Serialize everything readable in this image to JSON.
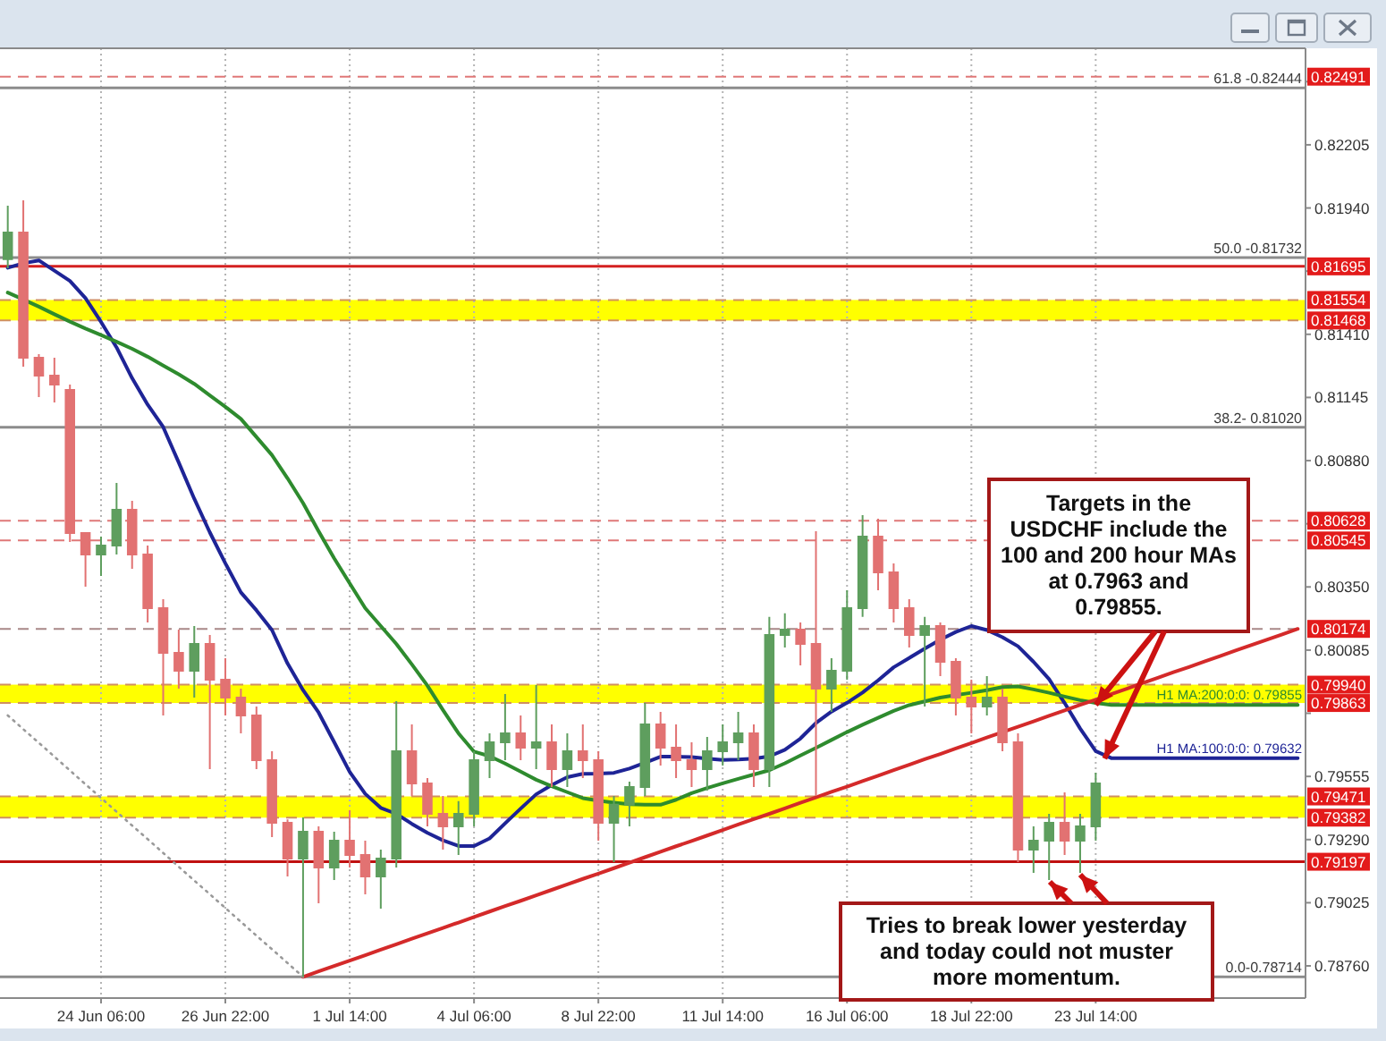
{
  "chart_data": {
    "type": "candlestick",
    "categories": [
      null,
      null,
      null,
      null,
      null,
      null,
      "24 Jun 06:00",
      null,
      null,
      null,
      null,
      null,
      null,
      null,
      "26 Jun 22:00",
      null,
      null,
      null,
      null,
      null,
      null,
      null,
      "1 Jul 14:00",
      null,
      null,
      null,
      null,
      null,
      null,
      null,
      "4 Jul 06:00",
      null,
      null,
      null,
      null,
      null,
      null,
      null,
      "8 Jul 22:00",
      null,
      null,
      null,
      null,
      null,
      null,
      null,
      "11 Jul 14:00",
      null,
      null,
      null,
      null,
      null,
      null,
      null,
      "16 Jul 06:00",
      null,
      null,
      null,
      null,
      null,
      null,
      null,
      "18 Jul 22:00",
      null,
      null,
      null,
      null,
      null,
      null,
      null,
      "23 Jul 14:00",
      null,
      null,
      null,
      null,
      null,
      null,
      null,
      null,
      null,
      null,
      null,
      null,
      null
    ],
    "ohlc": [
      [
        0.81725,
        0.8195,
        0.81687,
        0.81837
      ],
      [
        0.81837,
        0.81972,
        0.81274,
        0.81312
      ],
      [
        0.81312,
        0.81327,
        0.81147,
        0.81237
      ],
      [
        0.81237,
        0.81312,
        0.81124,
        0.81199
      ],
      [
        0.81177,
        0.81199,
        0.80539,
        0.80576
      ],
      [
        0.80576,
        0.80576,
        0.80351,
        0.80486
      ],
      [
        0.80486,
        0.80561,
        0.80396,
        0.80524
      ],
      [
        0.80524,
        0.80786,
        0.80486,
        0.80674
      ],
      [
        0.80674,
        0.80711,
        0.80426,
        0.80486
      ],
      [
        0.80486,
        0.80524,
        0.80201,
        0.80261
      ],
      [
        0.80261,
        0.80299,
        0.79811,
        0.80073
      ],
      [
        0.80073,
        0.80171,
        0.79923,
        0.79998
      ],
      [
        0.79998,
        0.80186,
        0.79886,
        0.80111
      ],
      [
        0.80111,
        0.80148,
        0.79586,
        0.79961
      ],
      [
        0.79961,
        0.80051,
        0.79811,
        0.79886
      ],
      [
        0.79886,
        0.79923,
        0.79736,
        0.79811
      ],
      [
        0.79811,
        0.79848,
        0.79586,
        0.79623
      ],
      [
        0.79623,
        0.79661,
        0.793,
        0.7936
      ],
      [
        0.7936,
        0.79375,
        0.79135,
        0.7921
      ],
      [
        0.7921,
        0.79383,
        0.78714,
        0.79323
      ],
      [
        0.79323,
        0.79345,
        0.79023,
        0.79173
      ],
      [
        0.79173,
        0.79323,
        0.7912,
        0.79285
      ],
      [
        0.79285,
        0.79413,
        0.79173,
        0.79225
      ],
      [
        0.79225,
        0.79285,
        0.7906,
        0.79135
      ],
      [
        0.79135,
        0.79248,
        0.79,
        0.7921
      ],
      [
        0.7921,
        0.79871,
        0.79173,
        0.79661
      ],
      [
        0.79661,
        0.79773,
        0.79473,
        0.79526
      ],
      [
        0.79526,
        0.79548,
        0.79345,
        0.79398
      ],
      [
        0.79398,
        0.79473,
        0.79248,
        0.79345
      ],
      [
        0.79345,
        0.79451,
        0.79225,
        0.79398
      ],
      [
        0.79398,
        0.79661,
        0.79345,
        0.79623
      ],
      [
        0.79623,
        0.79736,
        0.79548,
        0.79698
      ],
      [
        0.79698,
        0.79901,
        0.79623,
        0.79736
      ],
      [
        0.79736,
        0.79811,
        0.79623,
        0.79676
      ],
      [
        0.79676,
        0.79938,
        0.79586,
        0.79698
      ],
      [
        0.79698,
        0.79773,
        0.79511,
        0.79586
      ],
      [
        0.79586,
        0.79736,
        0.79511,
        0.79661
      ],
      [
        0.79661,
        0.79773,
        0.79548,
        0.79623
      ],
      [
        0.79623,
        0.79661,
        0.79285,
        0.7936
      ],
      [
        0.7936,
        0.79473,
        0.79195,
        0.79436
      ],
      [
        0.79436,
        0.79533,
        0.79345,
        0.79511
      ],
      [
        0.79511,
        0.79863,
        0.79473,
        0.79773
      ],
      [
        0.79773,
        0.79826,
        0.79601,
        0.79676
      ],
      [
        0.79676,
        0.79773,
        0.79548,
        0.79623
      ],
      [
        0.79623,
        0.79698,
        0.79511,
        0.79586
      ],
      [
        0.79586,
        0.79721,
        0.79496,
        0.79661
      ],
      [
        0.79661,
        0.79773,
        0.79601,
        0.79698
      ],
      [
        0.79698,
        0.79826,
        0.79623,
        0.79736
      ],
      [
        0.79736,
        0.79773,
        0.79511,
        0.79586
      ],
      [
        0.79586,
        0.80224,
        0.79511,
        0.80148
      ],
      [
        0.80148,
        0.80239,
        0.80096,
        0.80171
      ],
      [
        0.80171,
        0.80201,
        0.80021,
        0.80111
      ],
      [
        0.80111,
        0.80584,
        0.79473,
        0.79923
      ],
      [
        0.79923,
        0.80051,
        0.79826,
        0.79998
      ],
      [
        0.79998,
        0.80336,
        0.79961,
        0.80261
      ],
      [
        0.80261,
        0.80651,
        0.80224,
        0.80561
      ],
      [
        0.80561,
        0.80636,
        0.80336,
        0.80411
      ],
      [
        0.80411,
        0.80449,
        0.80201,
        0.80261
      ],
      [
        0.80261,
        0.80299,
        0.80096,
        0.80148
      ],
      [
        0.80148,
        0.80224,
        0.79848,
        0.80186
      ],
      [
        0.80186,
        0.80201,
        0.79976,
        0.80036
      ],
      [
        0.80036,
        0.80051,
        0.79811,
        0.79886
      ],
      [
        0.79886,
        0.79961,
        0.79736,
        0.79848
      ],
      [
        0.79848,
        0.79976,
        0.79811,
        0.79886
      ],
      [
        0.79886,
        0.79923,
        0.79661,
        0.79698
      ],
      [
        0.79698,
        0.79736,
        0.79195,
        0.79248
      ],
      [
        0.79248,
        0.79345,
        0.7915,
        0.79285
      ],
      [
        0.79285,
        0.79398,
        0.7912,
        0.7936
      ],
      [
        0.7936,
        0.79488,
        0.79225,
        0.79285
      ],
      [
        0.79285,
        0.79398,
        0.7915,
        0.79345
      ],
      [
        0.79345,
        0.79571,
        0.79285,
        0.79526
      ],
      null,
      null,
      null,
      null,
      null,
      null,
      null,
      null,
      null,
      null,
      null,
      null,
      null
    ],
    "colors": [
      "#5e9e5e",
      "#e27272",
      "#e27272",
      "#e27272",
      "#e27272",
      "#e27272",
      "#5e9e5e",
      "#5e9e5e",
      "#e27272",
      "#e27272",
      "#e27272",
      "#e27272",
      "#5e9e5e",
      "#e27272",
      "#e27272",
      "#e27272",
      "#e27272",
      "#e27272",
      "#e27272",
      "#5e9e5e",
      "#e27272",
      "#5e9e5e",
      "#e27272",
      "#e27272",
      "#5e9e5e",
      "#5e9e5e",
      "#e27272",
      "#e27272",
      "#e27272",
      "#5e9e5e",
      "#5e9e5e",
      "#5e9e5e",
      "#5e9e5e",
      "#e27272",
      "#5e9e5e",
      "#e27272",
      "#5e9e5e",
      "#e27272",
      "#e27272",
      "#5e9e5e",
      "#5e9e5e",
      "#5e9e5e",
      "#e27272",
      "#e27272",
      "#e27272",
      "#5e9e5e",
      "#5e9e5e",
      "#5e9e5e",
      "#e27272",
      "#5e9e5e",
      "#5e9e5e",
      "#e27272",
      "#e27272",
      "#5e9e5e",
      "#5e9e5e",
      "#5e9e5e",
      "#e27272",
      "#e27272",
      "#e27272",
      "#5e9e5e",
      "#e27272",
      "#e27272",
      "#e27272",
      "#5e9e5e",
      "#e27272",
      "#e27272",
      "#5e9e5e",
      "#5e9e5e",
      "#e27272",
      "#5e9e5e",
      "#5e9e5e",
      null,
      null,
      null,
      null,
      null,
      null,
      null,
      null,
      null,
      null,
      null,
      null,
      null
    ],
    "series": [
      {
        "type": "line",
        "name": "H1 MA:100:0:0: 0.79632",
        "color": "#1e2496",
        "values": [
          0.81689,
          0.81708,
          0.8172,
          0.81677,
          0.81634,
          0.81562,
          0.81462,
          0.81355,
          0.81226,
          0.81115,
          0.81021,
          0.80872,
          0.8072,
          0.80579,
          0.80449,
          0.80327,
          0.80252,
          0.80169,
          0.80029,
          0.79917,
          0.79823,
          0.79699,
          0.79574,
          0.79482,
          0.79423,
          0.79398,
          0.79356,
          0.79318,
          0.79287,
          0.79263,
          0.79263,
          0.79295,
          0.79358,
          0.7942,
          0.7948,
          0.79519,
          0.79552,
          0.79566,
          0.79567,
          0.7957,
          0.79588,
          0.79612,
          0.79638,
          0.79638,
          0.79636,
          0.7963,
          0.79624,
          0.79626,
          0.7963,
          0.79639,
          0.79667,
          0.79714,
          0.79779,
          0.79827,
          0.79864,
          0.79907,
          0.79958,
          0.80013,
          0.80052,
          0.80091,
          0.80129,
          0.80161,
          0.80186,
          0.80169,
          0.80139,
          0.80101,
          0.80036,
          0.79963,
          0.79863,
          0.79756,
          0.79661,
          0.79632,
          0.79632,
          0.79632,
          0.79632,
          0.79632,
          0.79632,
          0.79632,
          0.79632,
          0.79632,
          0.79632,
          0.79632,
          0.79632,
          0.79632
        ]
      },
      {
        "type": "line",
        "name": "H1 MA:200:0:0: 0.79855",
        "color": "#2e8b2e",
        "values": [
          0.81585,
          0.81556,
          0.81526,
          0.81494,
          0.81463,
          0.81434,
          0.81407,
          0.81379,
          0.81349,
          0.81316,
          0.81279,
          0.81242,
          0.81202,
          0.81154,
          0.81106,
          0.81055,
          0.80979,
          0.80903,
          0.80806,
          0.80702,
          0.80584,
          0.8047,
          0.80365,
          0.80261,
          0.80186,
          0.80111,
          0.80025,
          0.79936,
          0.79834,
          0.79736,
          0.79659,
          0.7964,
          0.79609,
          0.79575,
          0.79541,
          0.79514,
          0.79489,
          0.79464,
          0.79453,
          0.79445,
          0.79438,
          0.79436,
          0.79436,
          0.79457,
          0.79485,
          0.79506,
          0.79526,
          0.79545,
          0.79563,
          0.79581,
          0.7961,
          0.79643,
          0.79675,
          0.79708,
          0.79741,
          0.79772,
          0.79801,
          0.7983,
          0.79854,
          0.7987,
          0.79886,
          0.79896,
          0.79906,
          0.79917,
          0.7993,
          0.79933,
          0.7992,
          0.79906,
          0.7989,
          0.79875,
          0.79863,
          0.79855,
          0.79855,
          0.79855,
          0.79855,
          0.79855,
          0.79855,
          0.79855,
          0.79855,
          0.79855,
          0.79855,
          0.79855,
          0.79855,
          0.79855
        ]
      },
      {
        "type": "line",
        "color": "#d42a2a",
        "values": [
          null,
          null,
          null,
          null,
          null,
          null,
          null,
          null,
          null,
          null,
          null,
          null,
          null,
          null,
          null,
          null,
          null,
          null,
          null,
          0.78714,
          0.78737,
          0.7876,
          0.78782,
          0.78805,
          0.78828,
          0.78851,
          0.78874,
          0.78897,
          0.78919,
          0.78942,
          0.78965,
          0.78988,
          0.79011,
          0.79033,
          0.79056,
          0.79079,
          0.79102,
          0.79125,
          0.79147,
          0.7917,
          0.79193,
          0.79216,
          0.79239,
          0.79262,
          0.79284,
          0.79307,
          0.7933,
          0.79353,
          0.79376,
          0.79398,
          0.79421,
          0.79444,
          0.79467,
          0.7949,
          0.79512,
          0.79535,
          0.79558,
          0.79581,
          0.79604,
          0.79627,
          0.79649,
          0.79672,
          0.79695,
          0.79718,
          0.79741,
          0.79763,
          0.79786,
          0.79809,
          0.79832,
          0.79855,
          0.79877,
          0.799,
          0.79923,
          0.79946,
          0.79969,
          0.79992,
          0.80014,
          0.80037,
          0.8006,
          0.80083,
          0.80106,
          0.80128,
          0.80151,
          0.80174
        ]
      },
      {
        "type": "line",
        "color": "#9a9a9a",
        "line_style": "dotted",
        "values": [
          0.79811,
          0.79753,
          0.79696,
          0.79638,
          0.7958,
          0.79522,
          0.79465,
          0.79407,
          0.79349,
          0.79292,
          0.79234,
          0.79176,
          0.79118,
          0.79061,
          0.79003,
          0.78945,
          0.78887,
          0.7883,
          0.78772,
          0.78714,
          null,
          null,
          null,
          null,
          null,
          null,
          null,
          null,
          null,
          null,
          null,
          null,
          null,
          null,
          null,
          null,
          null,
          null,
          null,
          null,
          null,
          null,
          null,
          null,
          null,
          null,
          null,
          null,
          null,
          null,
          null,
          null,
          null,
          null,
          null,
          null,
          null,
          null,
          null,
          null,
          null,
          null,
          null,
          null,
          null,
          null,
          null,
          null,
          null,
          null,
          null,
          null,
          null,
          null,
          null,
          null,
          null,
          null,
          null,
          null,
          null,
          null,
          null,
          null
        ]
      }
    ],
    "ylim": [
      0.78625,
      0.8261
    ],
    "yticks": [
      {
        "value": 0.7876,
        "label": "0.78760"
      },
      0.79025,
      {
        "value": 0.7929,
        "label": "0.79290"
      },
      0.79555,
      {
        "value": 0.7982,
        "label": null
      },
      0.80085,
      {
        "value": 0.8035,
        "label": "0.80350"
      },
      {
        "value": 0.80615,
        "label": null
      },
      {
        "value": 0.8088,
        "label": "0.80880"
      },
      0.81145,
      {
        "value": 0.8141,
        "label": "0.81410"
      },
      {
        "value": 0.81675,
        "label": null
      },
      {
        "value": 0.8194,
        "label": "0.81940"
      },
      0.82205,
      {
        "value": 0.8247,
        "label": null
      }
    ],
    "grid": "x",
    "bands": [
      {
        "axis": "y",
        "from": 0.81468,
        "to": 0.81554,
        "color": "#ffff00"
      },
      {
        "axis": "y",
        "from": 0.79863,
        "to": 0.7994,
        "color": "#ffff00"
      },
      {
        "axis": "y",
        "from": 0.79382,
        "to": 0.79471,
        "color": "#ffff00"
      }
    ],
    "ref_lines": [
      {
        "axis": "y",
        "value": 0.82491,
        "label": "0.82491",
        "color": "#e07878",
        "line_style": "dashed"
      },
      {
        "axis": "y",
        "value": 0.82444,
        "color": "#8c8c8c"
      },
      {
        "axis": "y",
        "value": 0.81732,
        "color": "#8c8c8c"
      },
      {
        "axis": "y",
        "value": 0.81695,
        "label": "0.81695",
        "color": "#d42020"
      },
      {
        "axis": "y",
        "value": 0.81554,
        "label": "0.81554",
        "color": "#d09060",
        "line_style": "dashed"
      },
      {
        "axis": "y",
        "value": 0.81468,
        "label": "0.81468",
        "color": "#d09060",
        "line_style": "dashed"
      },
      {
        "axis": "y",
        "value": 0.8102,
        "color": "#8c8c8c"
      },
      {
        "axis": "y",
        "value": 0.80628,
        "label": "0.80628",
        "color": "#e07878",
        "line_style": "dashed"
      },
      {
        "axis": "y",
        "value": 0.80545,
        "label": "0.80545",
        "color": "#e07878",
        "line_style": "dashed"
      },
      {
        "axis": "y",
        "value": 0.80174,
        "label": "0.80174",
        "color": "#a88888",
        "line_style": "dashed"
      },
      {
        "axis": "y",
        "value": 0.7994,
        "label": "0.79940",
        "color": "#d09060",
        "line_style": "dashed"
      },
      {
        "axis": "y",
        "value": 0.79863,
        "label": "0.79863",
        "color": "#d09060",
        "line_style": "dashed"
      },
      {
        "axis": "y",
        "value": 0.79471,
        "label": "0.79471",
        "color": "#d09060",
        "line_style": "dashed"
      },
      {
        "axis": "y",
        "value": 0.79382,
        "label": "0.79382",
        "color": "#d09060",
        "line_style": "dashed"
      },
      {
        "axis": "y",
        "value": 0.79197,
        "label": "0.79197",
        "color": "#c01010"
      },
      {
        "axis": "y",
        "value": 0.78714,
        "color": "#8c8c8c"
      }
    ],
    "annotations": [
      {
        "text": "61.8 -0.82444",
        "y": 0.82444
      },
      {
        "text": "50.0 -0.81732",
        "y": 0.81732
      },
      {
        "text": "38.2- 0.81020",
        "y": 0.8102
      },
      {
        "text": "0.0-0.78714",
        "y": 0.78714
      },
      {
        "text": "Targets in the\nUSDCHF include the\n100 and 200 hour MAs\nat 0.7963 and\n0.79855.",
        "x": "23 Jul 14:00",
        "y": 0.79855
      },
      "Tries to break lower yesterday\nand today could not muster\nmore momentum."
    ]
  }
}
